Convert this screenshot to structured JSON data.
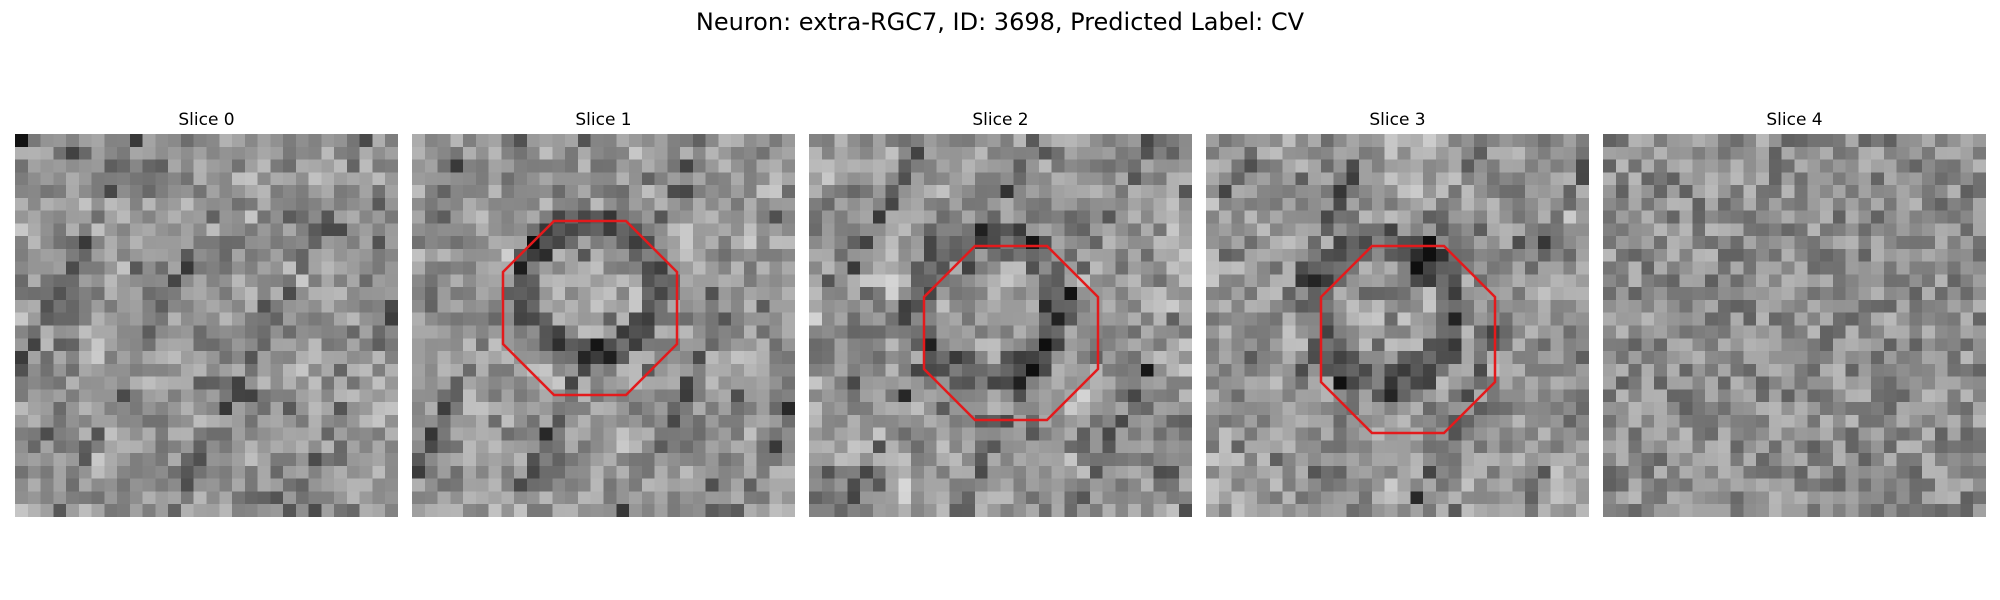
{
  "figure": {
    "title": "Neuron: extra-RGC7, ID: 3698, Predicted Label: CV"
  },
  "colormap": "gray",
  "outline_color": "#e31a1c",
  "panels": [
    {
      "title": "Slice 0",
      "has_outline": false
    },
    {
      "title": "Slice 1",
      "has_outline": true
    },
    {
      "title": "Slice 2",
      "has_outline": true
    },
    {
      "title": "Slice 3",
      "has_outline": true
    },
    {
      "title": "Slice 4",
      "has_outline": false
    }
  ]
}
